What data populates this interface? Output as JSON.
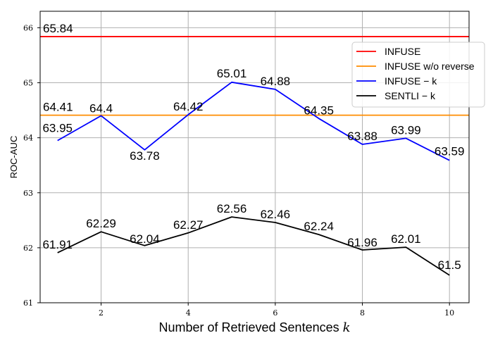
{
  "chart_data": {
    "type": "line",
    "xlabel": "Number of Retrieved Sentences k",
    "ylabel": "ROC-AUC",
    "xlim": [
      0.6,
      10.45
    ],
    "ylim": [
      61,
      66.3
    ],
    "xticks": [
      2,
      4,
      6,
      8,
      10
    ],
    "yticks": [
      61,
      62,
      63,
      64,
      65,
      66
    ],
    "grid": true,
    "legend_position": "upper-right",
    "x": [
      1,
      2,
      3,
      4,
      5,
      6,
      7,
      8,
      9,
      10
    ],
    "series": [
      {
        "name": "INFUSE",
        "style": "hline",
        "value": 65.84,
        "label": "65.84",
        "color": "#ff0000"
      },
      {
        "name": "INFUSE w/o reverse",
        "style": "hline",
        "value": 64.41,
        "label": "64.41",
        "color": "#ff8c00"
      },
      {
        "name": "INFUSE − k",
        "style": "line",
        "color": "#0000ff",
        "values": [
          63.95,
          64.4,
          63.78,
          64.42,
          65.01,
          64.88,
          64.35,
          63.88,
          63.99,
          63.59
        ],
        "labels": [
          "63.95",
          "64.4",
          "63.78",
          "64.42",
          "65.01",
          "64.88",
          "64.35",
          "63.88",
          "63.99",
          "63.59"
        ]
      },
      {
        "name": "SENTLI − k",
        "style": "line",
        "color": "#000000",
        "values": [
          61.91,
          62.29,
          62.04,
          62.27,
          62.56,
          62.46,
          62.24,
          61.96,
          62.01,
          61.5
        ],
        "labels": [
          "61.91",
          "62.29",
          "62.04",
          "62.27",
          "62.56",
          "62.46",
          "62.24",
          "61.96",
          "62.01",
          "61.5"
        ]
      }
    ]
  }
}
